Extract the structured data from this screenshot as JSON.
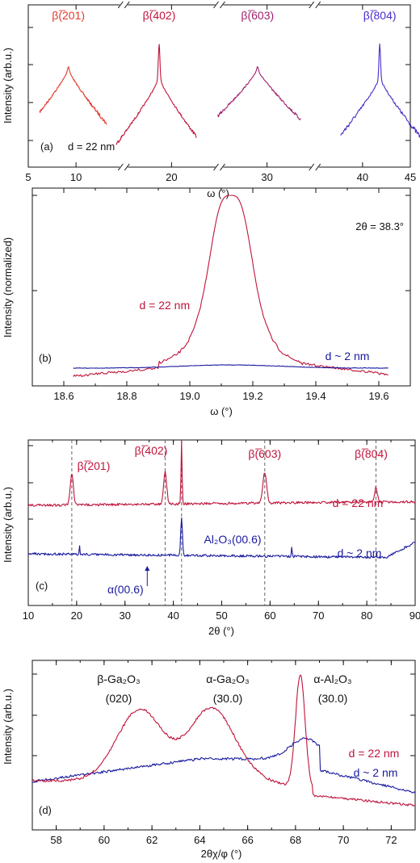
{
  "colors": {
    "red": "#e23a2c",
    "crimson": "#c0143c",
    "magenta": "#a0226e",
    "purple": "#7c2d9c",
    "violet": "#4b2cc8",
    "blue": "#1a1aa0",
    "dashed": "#666666"
  },
  "chart_data": [
    {
      "id": "a",
      "type": "line",
      "panel_label": "(a)",
      "note": "d = 22 nm",
      "xlabel": "ω (°)",
      "ylabel": "Intensity (arb.u.)",
      "ylog": true,
      "xlim": [
        5,
        45
      ],
      "xticks": [
        "5",
        "10",
        "20",
        "30",
        "40",
        "45"
      ],
      "axis_breaks": [
        15,
        25,
        35
      ],
      "peaks": [
        {
          "label": "β(̅201)",
          "center": 9.2,
          "range": [
            6.2,
            13.2
          ],
          "sharp": false,
          "color": "red"
        },
        {
          "label": "β(̅402)",
          "center": 18.7,
          "range": [
            14.2,
            22.6
          ],
          "sharp": true,
          "color": "crimson"
        },
        {
          "label": "β(̅603)",
          "center": 29.0,
          "range": [
            24.8,
            33.5
          ],
          "sharp": false,
          "color": "magenta"
        },
        {
          "label": "β(̅804)",
          "center": 41.8,
          "range": [
            37.7,
            46.8
          ],
          "sharp": true,
          "color": "violet"
        }
      ]
    },
    {
      "id": "b",
      "type": "line",
      "panel_label": "(b)",
      "note": "2θ = 38.3°",
      "xlabel": "ω (°)",
      "ylabel": "Intensity (normalized)",
      "xlim": [
        18.5,
        19.7
      ],
      "xticks": [
        "18.6",
        "18.8",
        "19.0",
        "19.2",
        "19.4",
        "19.6"
      ],
      "series": [
        {
          "name": "d = 22 nm",
          "color": "crimson",
          "center": 19.13,
          "width": 0.16,
          "amp": 1.0,
          "range": [
            18.63,
            19.63
          ]
        },
        {
          "name": "d ~ 2 nm",
          "color": "blue",
          "center": 19.13,
          "width": 0.22,
          "amp": 0.02,
          "range": [
            18.63,
            19.63
          ]
        }
      ]
    },
    {
      "id": "c",
      "type": "line",
      "panel_label": "(c)",
      "xlabel": "2θ (°)",
      "ylabel": "Intensity (arb.u.)",
      "xlim": [
        10,
        90
      ],
      "xticks": [
        "10",
        "20",
        "30",
        "40",
        "50",
        "60",
        "70",
        "80",
        "90"
      ],
      "dashed_lines": [
        19.0,
        38.3,
        41.7,
        58.9,
        81.9
      ],
      "peak_labels": [
        {
          "text": "β(̅201)",
          "x": 19.0
        },
        {
          "text": "β(̅402)",
          "x": 38.3
        },
        {
          "text": "β(̅603)",
          "x": 58.9
        },
        {
          "text": "β(̅804)",
          "x": 81.9
        }
      ],
      "series": [
        {
          "name": "d = 22 nm",
          "color": "crimson",
          "peaks": [
            19.0,
            38.3,
            41.7,
            58.9,
            81.9
          ]
        },
        {
          "name": "d ~ 2 nm",
          "color": "blue",
          "peaks": [
            20.6,
            41.7,
            64.5
          ]
        }
      ],
      "annotations": {
        "substrate": "Al₂O₃(00.6)",
        "alpha": "α(00.6)"
      }
    },
    {
      "id": "d",
      "type": "line",
      "panel_label": "(d)",
      "xlabel": "2θχ/φ (°)",
      "ylabel": "Intensity (arb.u.)",
      "ylog": true,
      "xlim": [
        57,
        73
      ],
      "xticks": [
        "58",
        "60",
        "62",
        "64",
        "66",
        "68",
        "70",
        "72"
      ],
      "peak_labels": [
        {
          "line1": "β-Ga₂O₃",
          "line2": "(020)",
          "x": 61.5
        },
        {
          "line1": "α-Ga₂O₃",
          "line2": "(30.0)",
          "x": 64.5
        },
        {
          "line1": "α-Al₂O₃",
          "line2": "(30.0)",
          "x": 68.3
        }
      ],
      "series": [
        {
          "name": "d = 22 nm",
          "color": "crimson"
        },
        {
          "name": "d ~ 2 nm",
          "color": "blue"
        }
      ]
    }
  ]
}
